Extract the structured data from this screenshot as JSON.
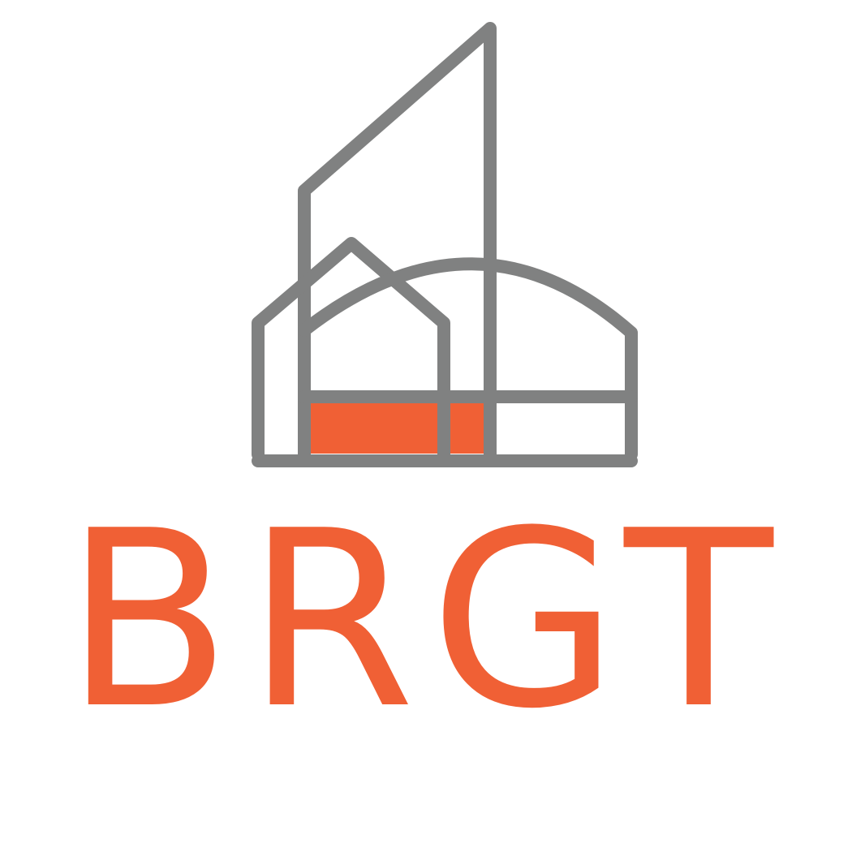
{
  "logo": {
    "wordmark": "BRGT",
    "icon": "building-outline-icon",
    "colors": {
      "outline": "#808181",
      "accent": "#F06035",
      "background": "#ffffff"
    }
  }
}
